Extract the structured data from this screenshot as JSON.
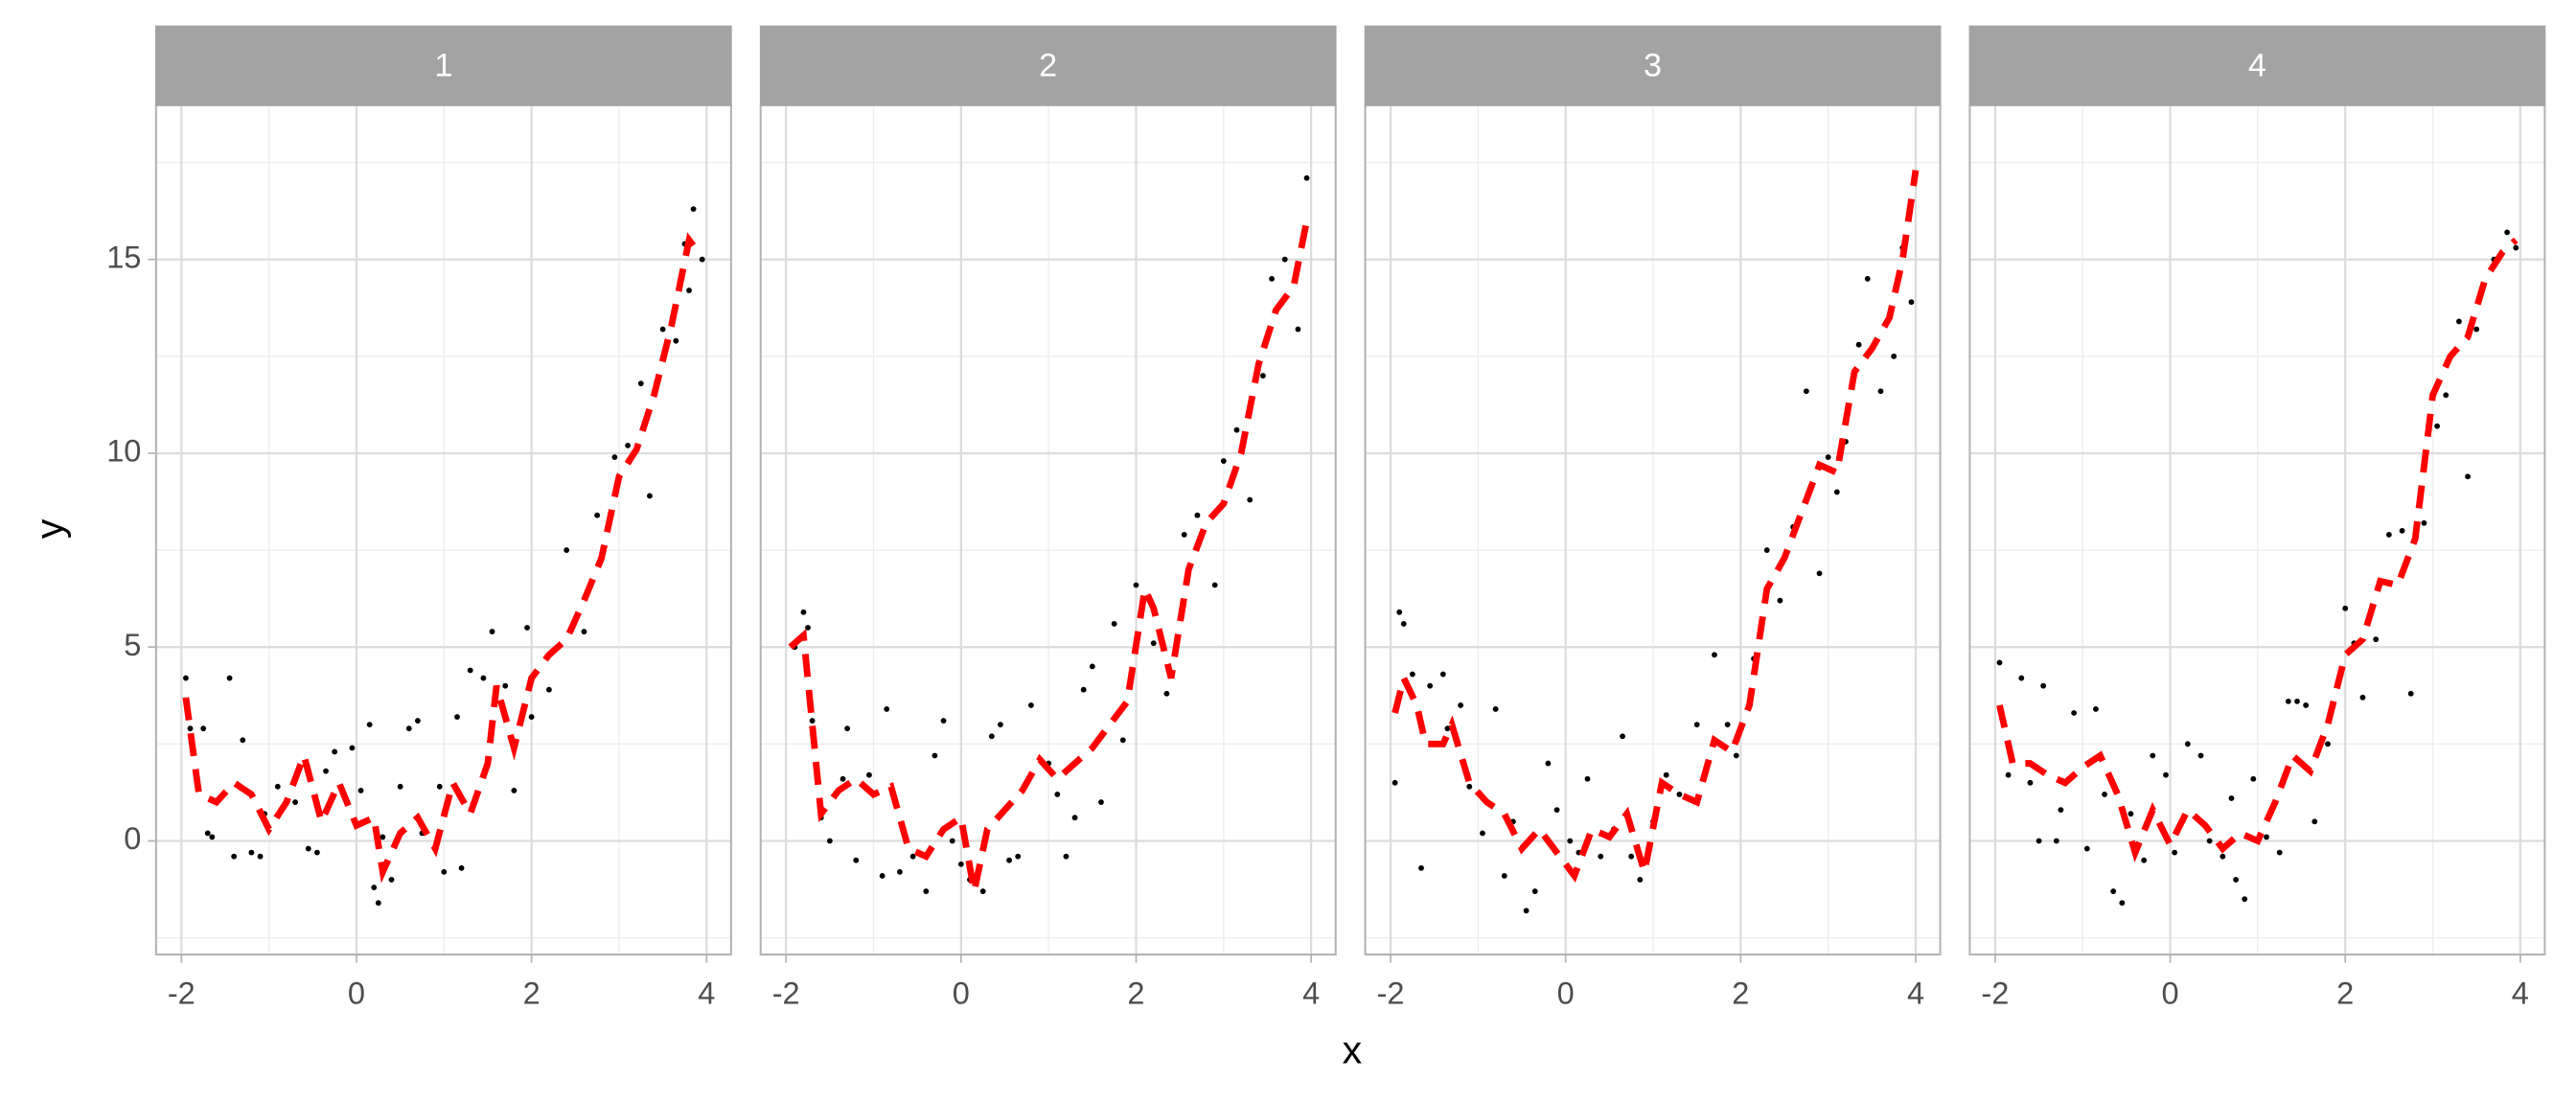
{
  "chart_data": {
    "type": "facet-scatter-line",
    "x_label": "x",
    "y_label": "y",
    "xlim": [
      -2.29,
      4.28
    ],
    "ylim": [
      -2.93,
      18.98
    ],
    "xticks": [
      -2,
      0,
      2,
      4
    ],
    "yticks": [
      0,
      5,
      10,
      15
    ],
    "grid": true,
    "point_color": "#000000",
    "line_color": "#ff0000",
    "line_dashed": true,
    "panels": [
      {
        "label": "1",
        "points": {
          "x": [
            -1.95,
            -1.9,
            -1.75,
            -1.7,
            -1.65,
            -1.45,
            -1.4,
            -1.3,
            -1.2,
            -1.1,
            -1.05,
            -0.9,
            -0.7,
            -0.55,
            -0.45,
            -0.35,
            -0.25,
            -0.05,
            0.05,
            0.15,
            0.2,
            0.25,
            0.3,
            0.4,
            0.5,
            0.6,
            0.7,
            0.75,
            0.95,
            1.0,
            1.15,
            1.2,
            1.3,
            1.45,
            1.55,
            1.7,
            1.8,
            1.95,
            2.0,
            2.2,
            2.4,
            2.6,
            2.75,
            2.95,
            3.1,
            3.25,
            3.35,
            3.5,
            3.65,
            3.75,
            3.8,
            3.85,
            3.95
          ],
          "y": [
            4.2,
            2.9,
            2.9,
            0.2,
            0.1,
            4.2,
            -0.4,
            2.6,
            -0.3,
            -0.4,
            0.7,
            1.4,
            1.0,
            -0.2,
            -0.3,
            1.8,
            2.3,
            2.4,
            1.3,
            3.0,
            -1.2,
            -1.6,
            0.1,
            -1.0,
            1.4,
            2.9,
            3.1,
            0.2,
            1.4,
            -0.8,
            3.2,
            -0.7,
            4.4,
            4.2,
            5.4,
            4.0,
            1.3,
            5.5,
            3.2,
            3.9,
            7.5,
            5.4,
            8.4,
            9.9,
            10.2,
            11.8,
            8.9,
            13.2,
            12.9,
            15.4,
            14.2,
            16.3,
            15.0
          ]
        },
        "line": {
          "x": [
            -1.95,
            -1.8,
            -1.6,
            -1.4,
            -1.2,
            -1.0,
            -0.8,
            -0.6,
            -0.4,
            -0.2,
            0,
            0.2,
            0.3,
            0.5,
            0.7,
            0.9,
            1.1,
            1.3,
            1.5,
            1.6,
            1.8,
            2.0,
            2.2,
            2.4,
            2.6,
            2.8,
            3.0,
            3.2,
            3.4,
            3.6,
            3.8,
            3.9
          ],
          "y": [
            3.7,
            1.2,
            1.0,
            1.5,
            1.2,
            0.3,
            1.0,
            2.2,
            0.5,
            1.5,
            0.4,
            0.6,
            -0.8,
            0.2,
            0.6,
            -0.2,
            1.5,
            0.7,
            2.0,
            4.0,
            2.4,
            4.2,
            4.8,
            5.2,
            6.2,
            7.3,
            9.4,
            10.1,
            11.5,
            13.3,
            15.5,
            15.2
          ]
        }
      },
      {
        "label": "2",
        "points": {
          "x": [
            -1.9,
            -1.8,
            -1.75,
            -1.7,
            -1.6,
            -1.5,
            -1.35,
            -1.3,
            -1.2,
            -1.05,
            -0.9,
            -0.85,
            -0.7,
            -0.55,
            -0.4,
            -0.3,
            -0.2,
            -0.1,
            0.0,
            0.1,
            0.25,
            0.35,
            0.45,
            0.55,
            0.65,
            0.8,
            1.0,
            1.1,
            1.2,
            1.3,
            1.4,
            1.5,
            1.6,
            1.75,
            1.85,
            2.0,
            2.2,
            2.35,
            2.55,
            2.7,
            2.9,
            3.0,
            3.15,
            3.3,
            3.45,
            3.55,
            3.7,
            3.85,
            3.95
          ],
          "y": [
            5.0,
            5.9,
            5.5,
            3.1,
            0.6,
            0.0,
            1.6,
            2.9,
            -0.5,
            1.7,
            -0.9,
            3.4,
            -0.8,
            -0.4,
            -1.3,
            2.2,
            3.1,
            0.0,
            -0.6,
            -1.0,
            -1.3,
            2.7,
            3.0,
            -0.5,
            -0.4,
            3.5,
            2.0,
            1.2,
            -0.4,
            0.6,
            3.9,
            4.5,
            1.0,
            5.6,
            2.6,
            6.6,
            5.1,
            3.8,
            7.9,
            8.4,
            6.6,
            9.8,
            10.6,
            8.8,
            12.0,
            14.5,
            15.0,
            13.2,
            17.1
          ]
        },
        "line": {
          "x": [
            -1.95,
            -1.8,
            -1.7,
            -1.6,
            -1.4,
            -1.2,
            -1.0,
            -0.8,
            -0.6,
            -0.4,
            -0.2,
            0,
            0.15,
            0.3,
            0.5,
            0.7,
            0.9,
            1.1,
            1.3,
            1.5,
            1.7,
            1.9,
            2.1,
            2.2,
            2.4,
            2.6,
            2.8,
            3.0,
            3.2,
            3.4,
            3.6,
            3.8,
            3.95
          ],
          "y": [
            5.0,
            5.3,
            3.0,
            0.7,
            1.3,
            1.6,
            1.2,
            1.4,
            -0.2,
            -0.4,
            0.3,
            0.6,
            -1.3,
            0.3,
            0.8,
            1.3,
            2.1,
            1.6,
            2.0,
            2.4,
            3.0,
            3.6,
            6.5,
            6.0,
            4.2,
            7.0,
            8.2,
            8.7,
            10.0,
            12.3,
            13.7,
            14.3,
            16.0
          ]
        }
      },
      {
        "label": "3",
        "points": {
          "x": [
            -1.95,
            -1.9,
            -1.85,
            -1.75,
            -1.65,
            -1.55,
            -1.4,
            -1.35,
            -1.2,
            -1.1,
            -0.95,
            -0.8,
            -0.7,
            -0.6,
            -0.45,
            -0.35,
            -0.2,
            -0.1,
            0.05,
            0.15,
            0.25,
            0.4,
            0.55,
            0.65,
            0.75,
            0.85,
            1.0,
            1.15,
            1.3,
            1.5,
            1.7,
            1.85,
            1.95,
            2.15,
            2.3,
            2.45,
            2.6,
            2.75,
            2.9,
            3.0,
            3.1,
            3.2,
            3.35,
            3.45,
            3.6,
            3.75,
            3.85,
            3.95
          ],
          "y": [
            1.5,
            5.9,
            5.6,
            4.3,
            -0.7,
            4.0,
            4.3,
            2.9,
            3.5,
            1.4,
            0.2,
            3.4,
            -0.9,
            0.5,
            -1.8,
            -1.3,
            2.0,
            0.8,
            0.0,
            -0.3,
            1.6,
            -0.4,
            0.3,
            2.7,
            -0.4,
            -1.0,
            0.5,
            1.7,
            1.2,
            3.0,
            4.8,
            3.0,
            2.2,
            4.7,
            7.5,
            6.2,
            8.1,
            11.6,
            6.9,
            9.9,
            9.0,
            10.3,
            12.8,
            14.5,
            11.6,
            12.5,
            15.3,
            13.9
          ]
        },
        "line": {
          "x": [
            -1.95,
            -1.85,
            -1.7,
            -1.6,
            -1.4,
            -1.3,
            -1.1,
            -0.9,
            -0.7,
            -0.5,
            -0.3,
            -0.1,
            0.1,
            0.3,
            0.5,
            0.7,
            0.9,
            1.1,
            1.3,
            1.5,
            1.7,
            1.9,
            2.1,
            2.3,
            2.5,
            2.7,
            2.9,
            3.1,
            3.3,
            3.5,
            3.7,
            3.85,
            4.0
          ],
          "y": [
            3.3,
            4.2,
            3.5,
            2.5,
            2.5,
            3.0,
            1.5,
            1.0,
            0.7,
            -0.2,
            0.3,
            -0.3,
            -0.9,
            0.3,
            0.1,
            0.7,
            -0.8,
            1.5,
            1.2,
            1.0,
            2.6,
            2.3,
            3.5,
            6.5,
            7.3,
            8.5,
            9.7,
            9.5,
            12.1,
            12.7,
            13.5,
            15.0,
            17.3
          ]
        }
      },
      {
        "label": "4",
        "points": {
          "x": [
            -1.95,
            -1.85,
            -1.7,
            -1.6,
            -1.5,
            -1.45,
            -1.3,
            -1.25,
            -1.1,
            -0.95,
            -0.85,
            -0.75,
            -0.65,
            -0.55,
            -0.45,
            -0.3,
            -0.2,
            -0.05,
            0.05,
            0.2,
            0.35,
            0.45,
            0.6,
            0.7,
            0.75,
            0.85,
            0.95,
            1.1,
            1.25,
            1.35,
            1.45,
            1.55,
            1.65,
            1.8,
            2.0,
            2.1,
            2.2,
            2.35,
            2.5,
            2.65,
            2.75,
            2.9,
            3.05,
            3.15,
            3.3,
            3.4,
            3.5,
            3.7,
            3.85,
            3.95
          ],
          "y": [
            4.6,
            1.7,
            4.2,
            1.5,
            0.0,
            4.0,
            0.0,
            0.8,
            3.3,
            -0.2,
            3.4,
            1.2,
            -1.3,
            -1.6,
            0.7,
            -0.5,
            2.2,
            1.7,
            -0.3,
            2.5,
            2.2,
            0.0,
            -0.4,
            1.1,
            -1.0,
            -1.5,
            1.6,
            0.1,
            -0.3,
            3.6,
            3.6,
            3.5,
            0.5,
            2.5,
            6.0,
            5.1,
            3.7,
            5.2,
            7.9,
            8.0,
            3.8,
            8.2,
            10.7,
            11.5,
            13.4,
            9.4,
            13.2,
            15.0,
            15.7,
            15.3
          ]
        },
        "line": {
          "x": [
            -1.95,
            -1.8,
            -1.6,
            -1.4,
            -1.2,
            -1.0,
            -0.8,
            -0.6,
            -0.4,
            -0.2,
            0,
            0.2,
            0.4,
            0.6,
            0.8,
            1.0,
            1.2,
            1.4,
            1.6,
            1.8,
            2.0,
            2.2,
            2.4,
            2.6,
            2.8,
            3.0,
            3.2,
            3.4,
            3.6,
            3.8,
            3.95
          ],
          "y": [
            3.5,
            2.0,
            2.0,
            1.7,
            1.5,
            1.9,
            2.2,
            1.2,
            -0.3,
            0.8,
            -0.1,
            0.8,
            0.4,
            -0.2,
            0.2,
            0.0,
            1.0,
            2.2,
            1.8,
            3.0,
            4.8,
            5.2,
            6.7,
            6.6,
            7.8,
            11.5,
            12.5,
            13.0,
            14.5,
            15.2,
            15.5
          ]
        }
      }
    ]
  }
}
